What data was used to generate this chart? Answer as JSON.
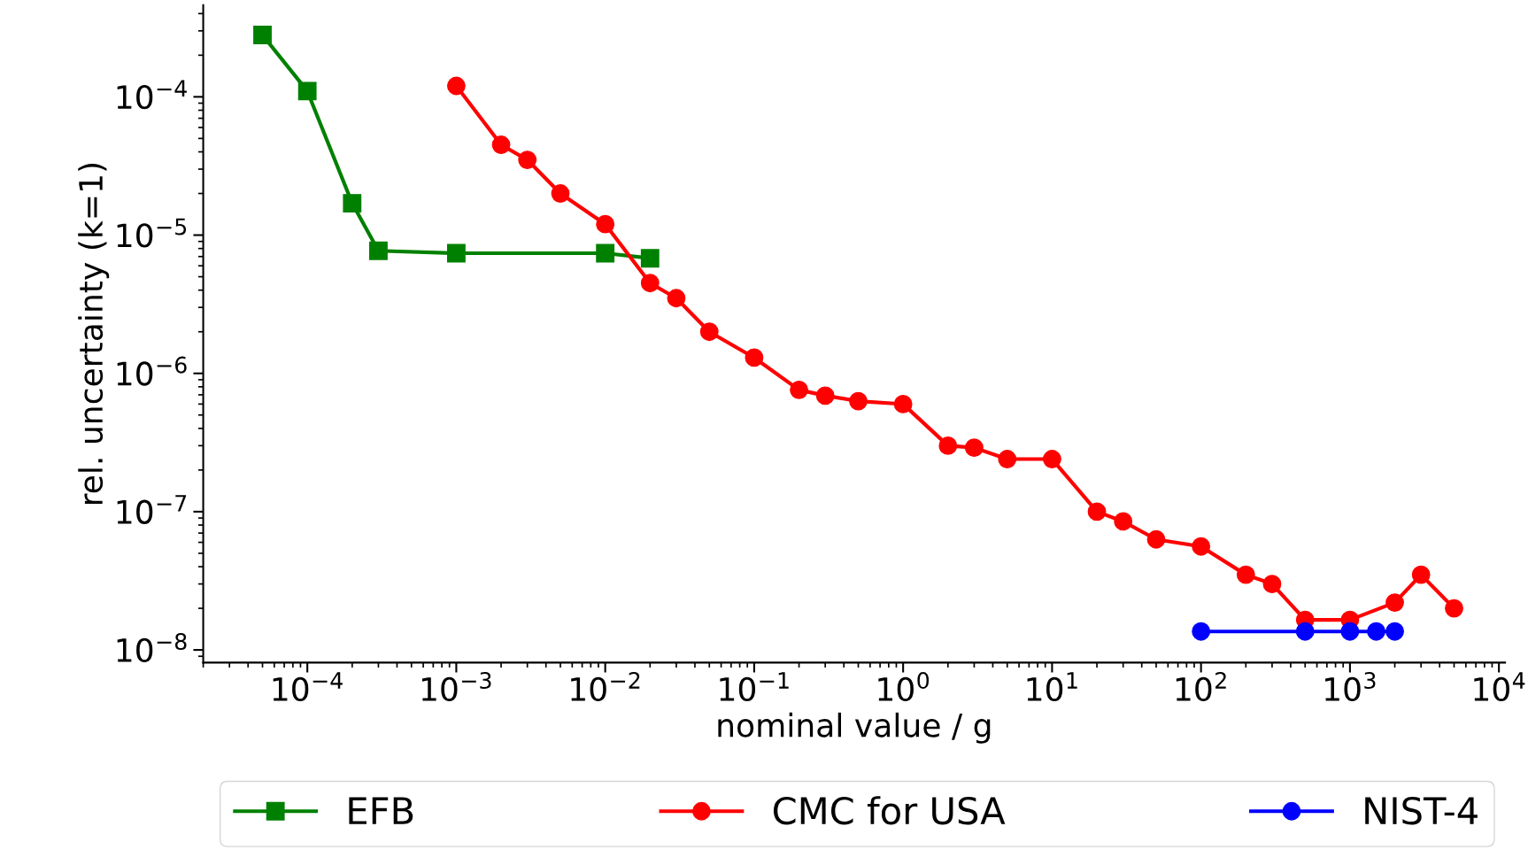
{
  "chart_data": {
    "type": "line",
    "xlabel": "nominal value / g",
    "ylabel": "rel. uncertainty (k=1)",
    "log": "xy",
    "grid": false,
    "legend": "bottom",
    "xlim": [
      2e-05,
      11000.0
    ],
    "ylim": [
      8.1e-09,
      0.00046
    ],
    "xticks": [
      {
        "value": 0.0001,
        "label": "10$^{−4}$"
      },
      {
        "value": 0.001,
        "label": "10$^{−3}$"
      },
      {
        "value": 0.01,
        "label": "10$^{−2}$"
      },
      {
        "value": 0.1,
        "label": "10$^{−1}$"
      },
      {
        "value": 1,
        "label": "10$^{0}$"
      },
      {
        "value": 10,
        "label": "10$^{1}$"
      },
      {
        "value": 100,
        "label": "10$^{2}$"
      },
      {
        "value": 1000,
        "label": "10$^{3}$"
      },
      {
        "value": 10000,
        "label": "10$^{4}$"
      }
    ],
    "yticks": [
      {
        "value": 1e-08,
        "label": "10$^{−8}$"
      },
      {
        "value": 1e-07,
        "label": "10$^{−7}$"
      },
      {
        "value": 1e-06,
        "label": "10$^{−6}$"
      },
      {
        "value": 1e-05,
        "label": "10$^{−5}$"
      },
      {
        "value": 0.0001,
        "label": "10$^{−4}$"
      }
    ],
    "series": [
      {
        "name": "EFB",
        "color": "#008000",
        "marker": "square",
        "x": [
          5e-05,
          0.0001,
          0.0002,
          0.0003,
          0.001,
          0.01,
          0.02
        ],
        "values": [
          0.00028,
          0.00011,
          1.7e-05,
          7.7e-06,
          7.4e-06,
          7.4e-06,
          6.8e-06
        ]
      },
      {
        "name": "CMC for USA",
        "color": "#ff0000",
        "marker": "circle",
        "x": [
          0.001,
          0.002,
          0.003,
          0.005,
          0.01,
          0.02,
          0.03,
          0.05,
          0.1,
          0.2,
          0.3,
          0.5,
          1,
          2,
          3,
          5,
          10,
          20,
          30,
          50,
          100,
          200,
          300,
          500,
          1000,
          2000,
          3000,
          5000
        ],
        "values": [
          0.00012,
          4.5e-05,
          3.5e-05,
          2e-05,
          1.2e-05,
          4.5e-06,
          3.5e-06,
          2e-06,
          1.3e-06,
          7.6e-07,
          6.9e-07,
          6.3e-07,
          6e-07,
          3e-07,
          2.9e-07,
          2.4e-07,
          2.4e-07,
          1e-07,
          8.5e-08,
          6.3e-08,
          5.6e-08,
          3.5e-08,
          3e-08,
          1.65e-08,
          1.65e-08,
          2.2e-08,
          3.5e-08,
          2e-08
        ]
      },
      {
        "name": "NIST-4",
        "color": "#0000ff",
        "marker": "circle",
        "x": [
          100,
          500,
          1000,
          1500,
          2000
        ],
        "values": [
          1.36e-08,
          1.36e-08,
          1.36e-08,
          1.36e-08,
          1.36e-08
        ]
      }
    ]
  }
}
